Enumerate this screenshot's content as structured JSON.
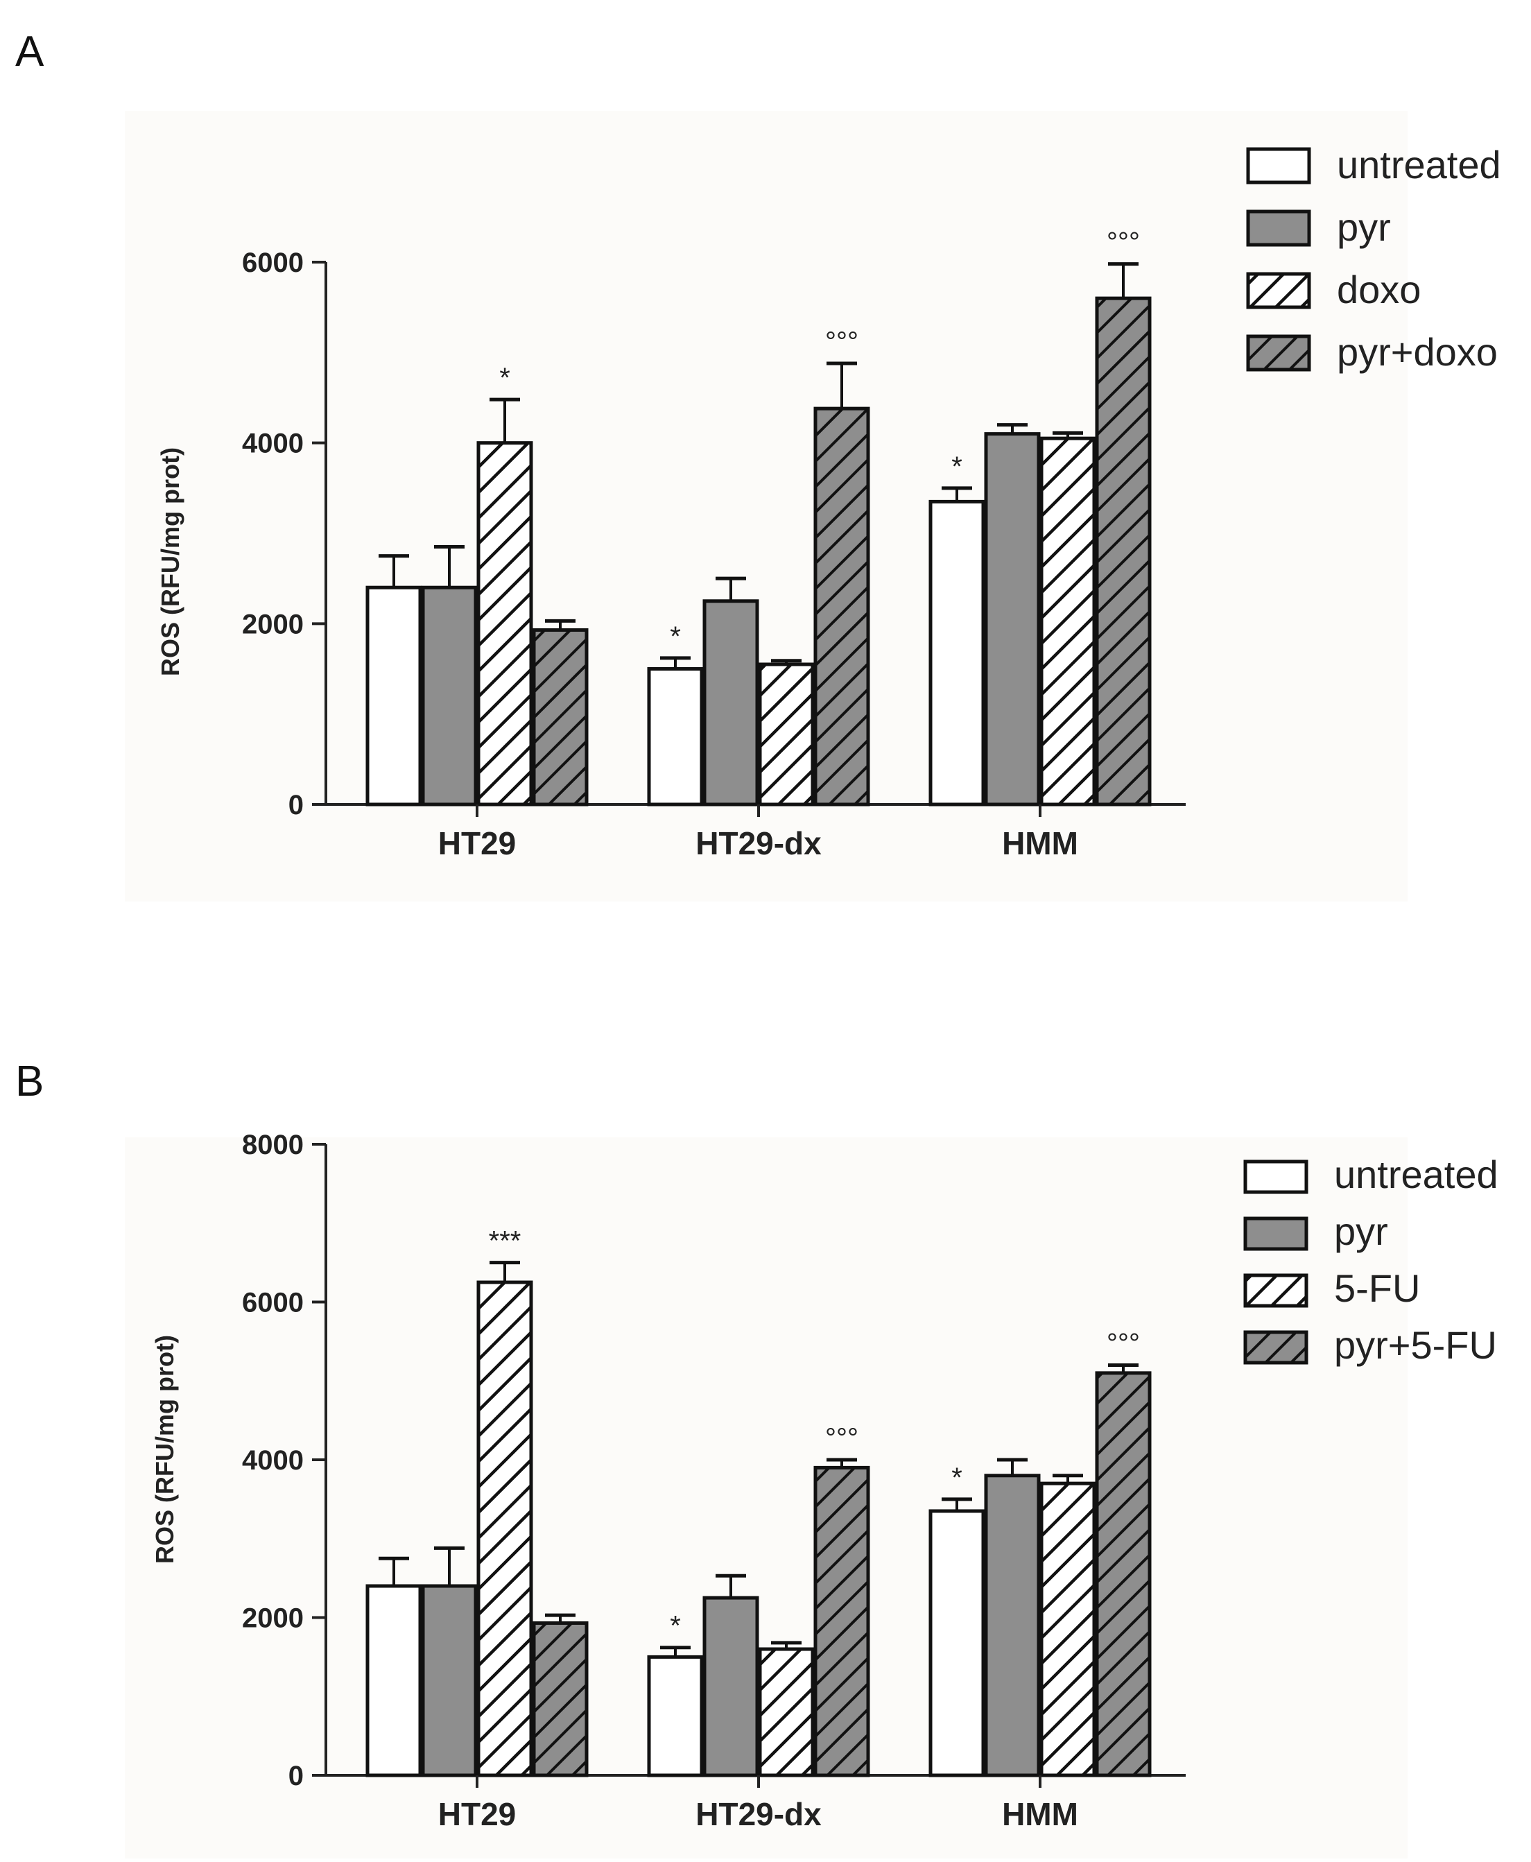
{
  "panels": [
    {
      "label": "A",
      "chart_data": {
        "type": "bar",
        "title": "",
        "xlabel": "",
        "ylabel": "ROS (RFU/mg prot)",
        "ylim": [
          0,
          6000
        ],
        "yticks": [
          0,
          2000,
          4000,
          6000
        ],
        "categories": [
          "HT29",
          "HT29-dx",
          "HMM"
        ],
        "series": [
          {
            "name": "untreated",
            "pattern": "white",
            "values": [
              2400,
              1500,
              3350
            ],
            "errors": [
              350,
              120,
              150
            ]
          },
          {
            "name": "pyr",
            "pattern": "gray",
            "values": [
              2400,
              2250,
              4100
            ],
            "errors": [
              450,
              250,
              100
            ]
          },
          {
            "name": "doxo",
            "pattern": "white-hatch",
            "values": [
              4000,
              1550,
              4050
            ],
            "errors": [
              480,
              40,
              60
            ]
          },
          {
            "name": "pyr+doxo",
            "pattern": "gray-hatch",
            "values": [
              1930,
              4380,
              5600
            ],
            "errors": [
              100,
              500,
              380
            ]
          }
        ],
        "annotations": [
          {
            "series": 2,
            "category": 0,
            "text": "*"
          },
          {
            "series": 0,
            "category": 1,
            "text": "*"
          },
          {
            "series": 3,
            "category": 1,
            "text": "°°°"
          },
          {
            "series": 0,
            "category": 2,
            "text": "*"
          },
          {
            "series": 3,
            "category": 2,
            "text": "°°°"
          }
        ],
        "legend_position": "top-right"
      }
    },
    {
      "label": "B",
      "chart_data": {
        "type": "bar",
        "title": "",
        "xlabel": "",
        "ylabel": "ROS (RFU/mg prot)",
        "ylim": [
          0,
          8000
        ],
        "yticks": [
          0,
          2000,
          4000,
          6000,
          8000
        ],
        "categories": [
          "HT29",
          "HT29-dx",
          "HMM"
        ],
        "series": [
          {
            "name": "untreated",
            "pattern": "white",
            "values": [
              2400,
              1500,
              3350
            ],
            "errors": [
              350,
              120,
              150
            ]
          },
          {
            "name": "pyr",
            "pattern": "gray",
            "values": [
              2400,
              2250,
              3800
            ],
            "errors": [
              480,
              280,
              200
            ]
          },
          {
            "name": "5-FU",
            "pattern": "white-hatch",
            "values": [
              6250,
              1600,
              3700
            ],
            "errors": [
              250,
              80,
              100
            ]
          },
          {
            "name": "pyr+5-FU",
            "pattern": "gray-hatch",
            "values": [
              1930,
              3900,
              5100
            ],
            "errors": [
              100,
              100,
              100
            ]
          }
        ],
        "annotations": [
          {
            "series": 2,
            "category": 0,
            "text": "***"
          },
          {
            "series": 0,
            "category": 1,
            "text": "*"
          },
          {
            "series": 3,
            "category": 1,
            "text": "°°°"
          },
          {
            "series": 0,
            "category": 2,
            "text": "*"
          },
          {
            "series": 3,
            "category": 2,
            "text": "°°°"
          }
        ],
        "legend_position": "top-right"
      }
    }
  ]
}
